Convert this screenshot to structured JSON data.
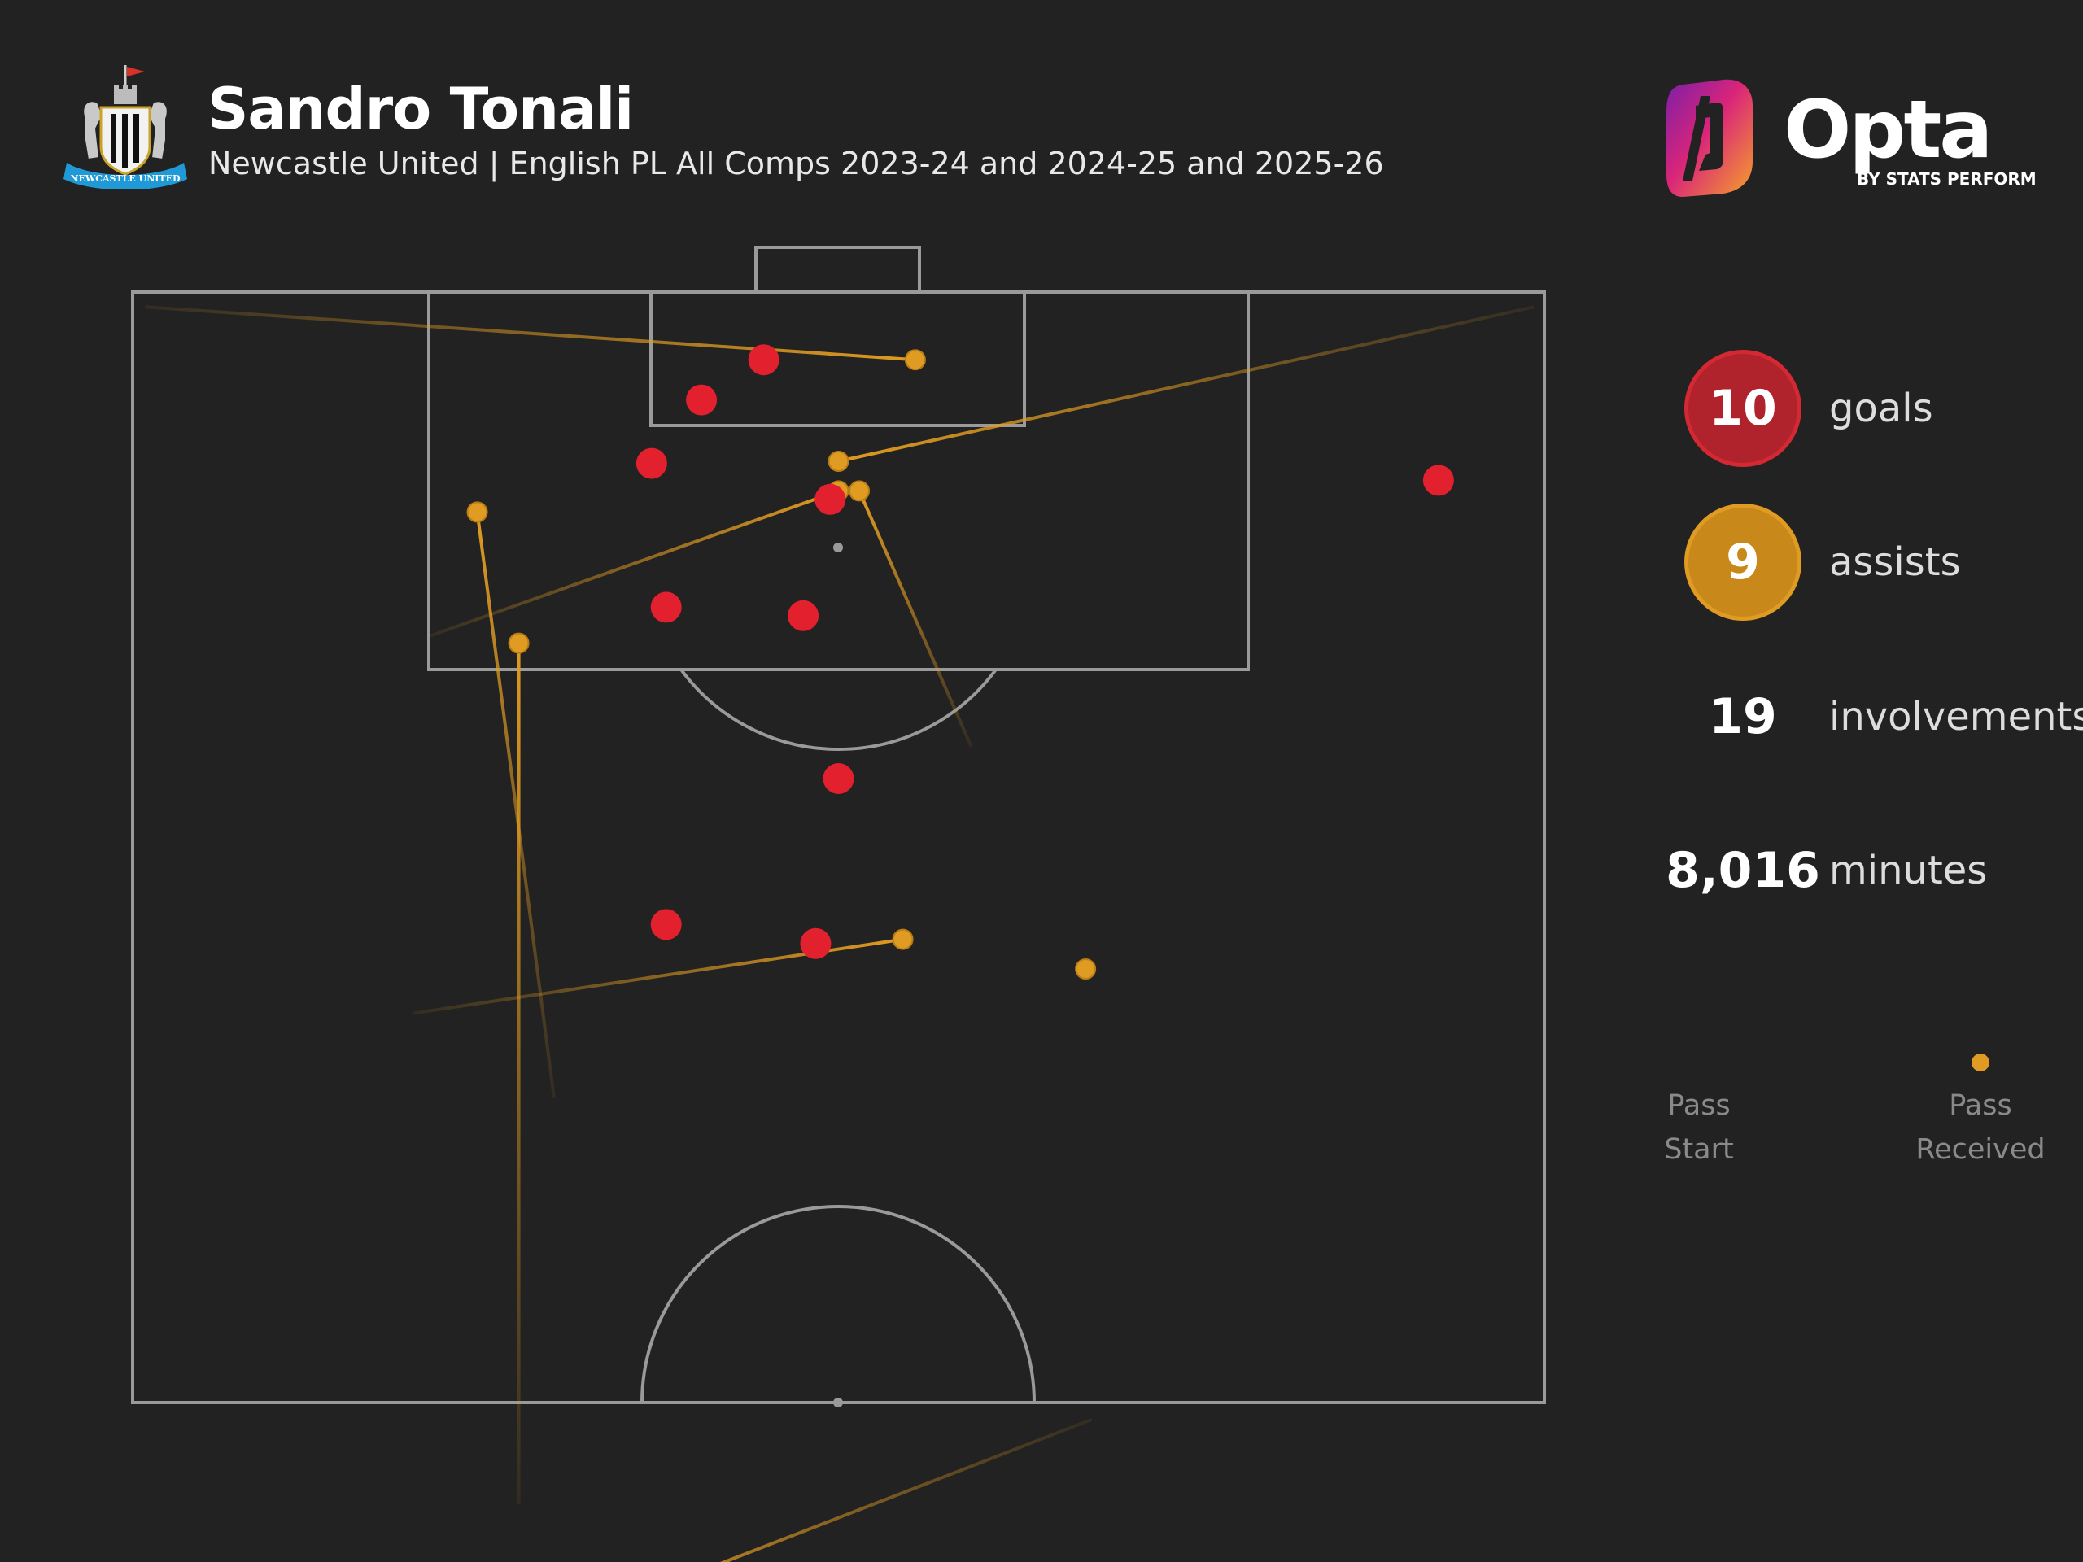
{
  "header": {
    "player_name": "Sandro Tonali",
    "subtitle": "Newcastle United | English PL All Comps 2023-24 and 2024-25 and 2025-26",
    "club_crest": "newcastle-united-crest-icon",
    "crest_ribbon_text": "NEWCASTLE UNITED"
  },
  "brand": {
    "logo_icon": "opta-logo-icon",
    "wordmark": "Opta",
    "byline": "BY STATS PERFORM"
  },
  "stats": {
    "goals": {
      "value": "10",
      "label": "goals"
    },
    "assists": {
      "value": "9",
      "label": "assists"
    },
    "involvements": {
      "value": "19",
      "label": "involvements"
    },
    "minutes": {
      "value": "8,016",
      "label": "minutes"
    }
  },
  "legend": {
    "start_label_1": "Pass",
    "start_label_2": "Start",
    "end_label_1": "Pass",
    "end_label_2": "Received"
  },
  "colors": {
    "background": "#222222",
    "pitch_lines": "#9a9a9a",
    "goal": "#e3202d",
    "assist": "#e09b22"
  },
  "chart_data": {
    "type": "scatter",
    "pitch_length": 105,
    "pitch_width": 68,
    "goals": [
      {
        "x": 101.8,
        "y": 30.4
      },
      {
        "x": 99.9,
        "y": 27.4
      },
      {
        "x": 96.9,
        "y": 25.0
      },
      {
        "x": 95.2,
        "y": 33.6
      },
      {
        "x": 90.1,
        "y": 25.7
      },
      {
        "x": 89.7,
        "y": 32.3
      },
      {
        "x": 82.0,
        "y": 34.0
      },
      {
        "x": 75.1,
        "y": 25.7
      },
      {
        "x": 74.2,
        "y": 32.9
      },
      {
        "x": 96.1,
        "y": 62.9
      }
    ],
    "assists": [
      {
        "start": {
          "x": 104.3,
          "y": 0.6
        },
        "end": {
          "x": 101.8,
          "y": 37.7
        }
      },
      {
        "start": {
          "x": 104.3,
          "y": 67.5
        },
        "end": {
          "x": 97.0,
          "y": 34.0
        }
      },
      {
        "start": {
          "x": 88.7,
          "y": 14.2
        },
        "end": {
          "x": 95.6,
          "y": 34.0
        }
      },
      {
        "start": {
          "x": 83.5,
          "y": 40.4
        },
        "end": {
          "x": 95.6,
          "y": 35.0
        }
      },
      {
        "start": {
          "x": 66.9,
          "y": 20.3
        },
        "end": {
          "x": 94.6,
          "y": 16.6
        }
      },
      {
        "start": {
          "x": 70.9,
          "y": 13.5
        },
        "end": {
          "x": 74.4,
          "y": 37.1
        }
      },
      {
        "start": {
          "x": 47.7,
          "y": 18.6
        },
        "end": {
          "x": 88.4,
          "y": 18.6
        }
      },
      {
        "start": {
          "x": 51.7,
          "y": 46.2
        },
        "end": {
          "x": 42.1,
          "y": 21.0
        }
      },
      {
        "start": {
          "x": 73.0,
          "y": 45.9
        },
        "end": {
          "x": 73.0,
          "y": 45.9
        }
      }
    ]
  }
}
